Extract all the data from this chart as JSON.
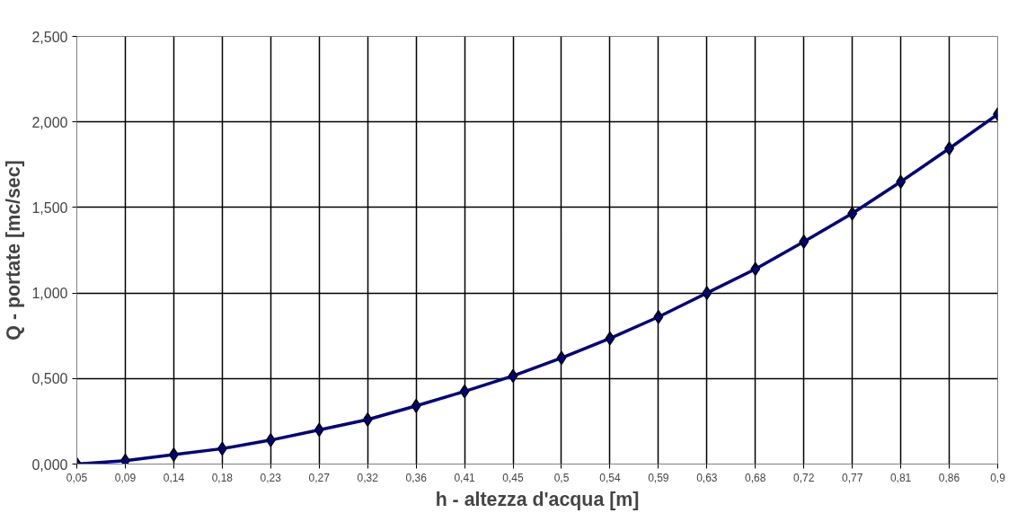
{
  "chart_data": {
    "type": "line",
    "xlabel": "h - altezza d'acqua [m]",
    "ylabel": "Q - portate [mc/sec]",
    "categories": [
      "0,05",
      "0,09",
      "0,14",
      "0,18",
      "0,23",
      "0,27",
      "0,32",
      "0,36",
      "0,41",
      "0,45",
      "0,5",
      "0,54",
      "0,59",
      "0,63",
      "0,68",
      "0,72",
      "0,77",
      "0,81",
      "0,86",
      "0,9"
    ],
    "series": [
      {
        "color": "#000080",
        "values": [
          0,
          0.02,
          0.055,
          0.09,
          0.14,
          0.2,
          0.26,
          0.34,
          0.425,
          0.515,
          0.62,
          0.735,
          0.86,
          1.0,
          1.14,
          1.3,
          1.465,
          1.65,
          1.845,
          2.045
        ]
      }
    ],
    "ylim": [
      0,
      2.5
    ],
    "yticks": [
      {
        "value": 0,
        "label": "0,000"
      },
      {
        "value": 0.5,
        "label": "0,500"
      },
      {
        "value": 1,
        "label": "1,000"
      },
      {
        "value": 1.5,
        "label": "1,500"
      },
      {
        "value": 2,
        "label": "2,000"
      },
      {
        "value": 2.5,
        "label": "2,500"
      }
    ],
    "grid": true,
    "marker": "diamond",
    "line_style": "solid"
  }
}
